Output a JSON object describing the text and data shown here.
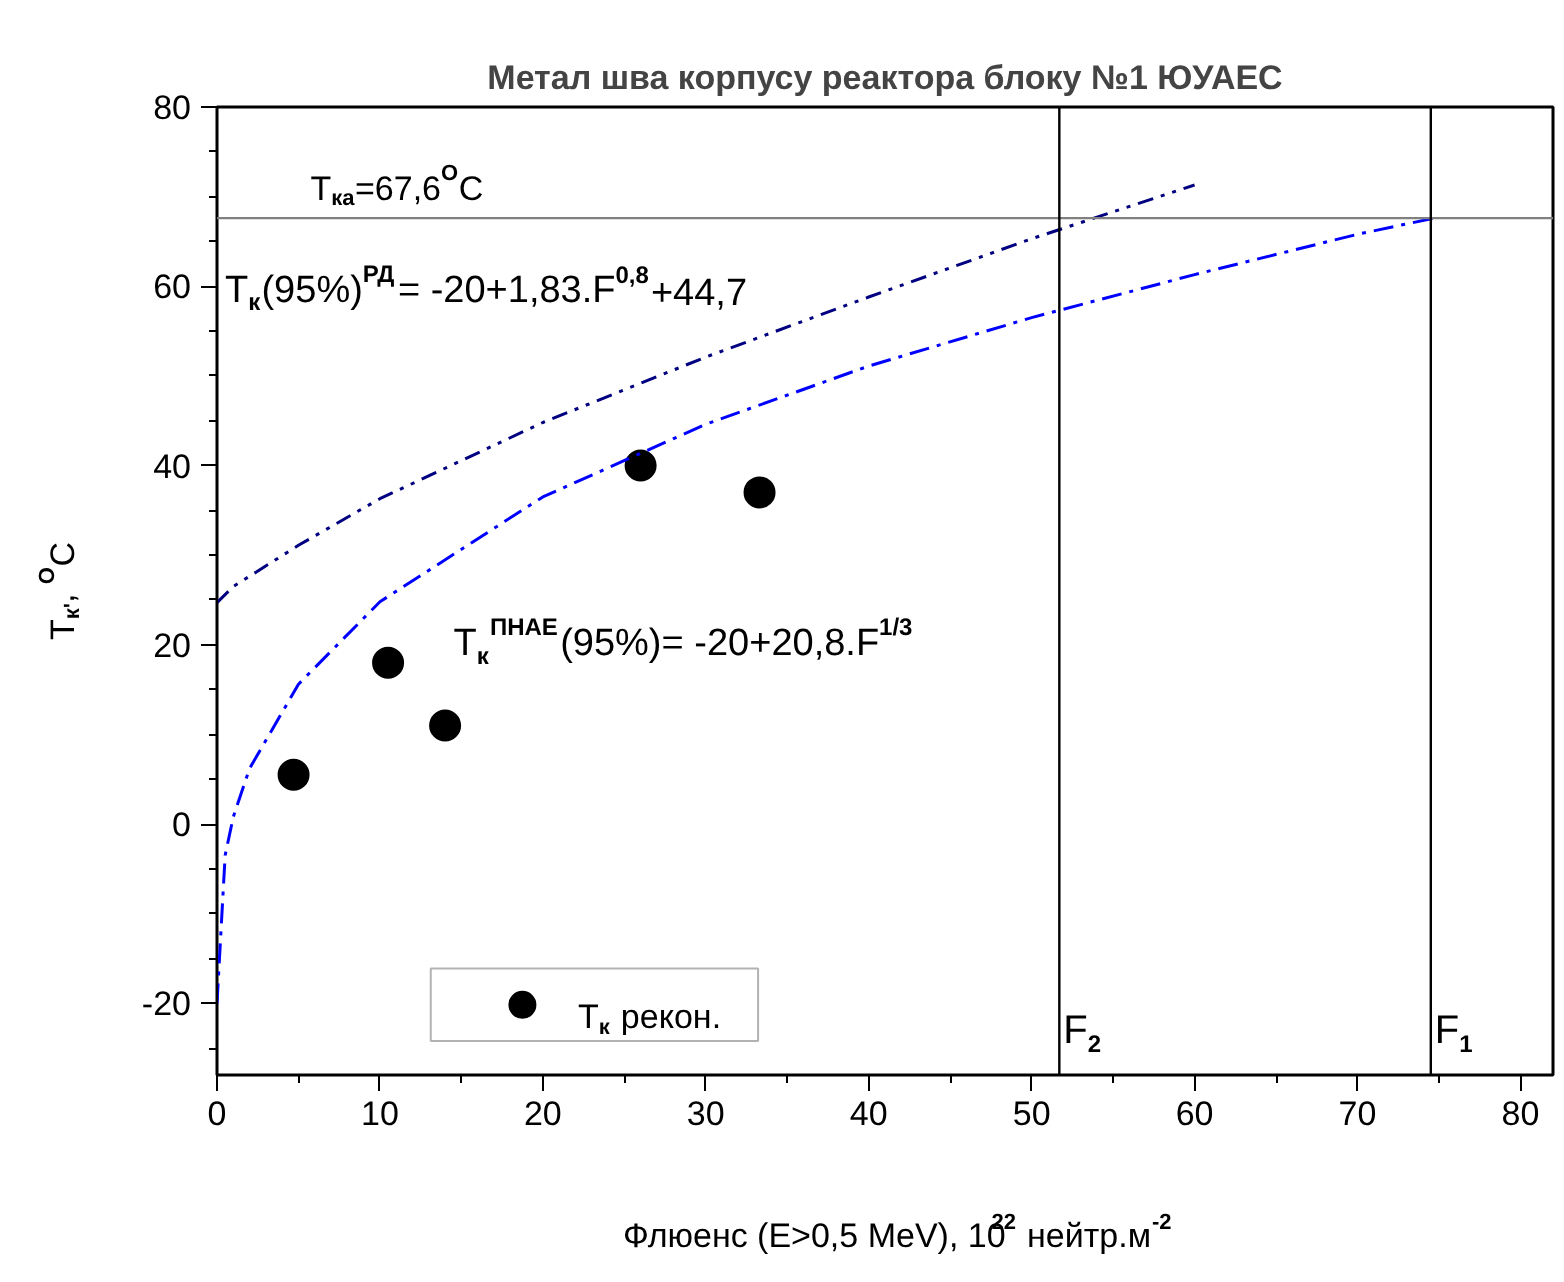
{
  "chart_data": {
    "type": "scatter",
    "title": "Метал шва корпусу реактора блоку №1 ЮУАЕС",
    "xlabel": "Флюенс (E>0,5 MeV), 10$^{22}$ нейтр.м$^{-2}$",
    "ylabel": "T$_{к'}$, $^{O}$C",
    "xlim": [
      0,
      82
    ],
    "ylim": [
      -28,
      80
    ],
    "xticks": [
      0,
      10,
      20,
      30,
      40,
      50,
      60,
      70,
      80
    ],
    "yticks": [
      -20,
      0,
      20,
      40,
      60,
      80
    ],
    "grid": false,
    "legend": "bottom left",
    "series": [
      {
        "name": "T$_{к}$ рекон.",
        "marker": "circle",
        "color": "#000000",
        "x": [
          4.7,
          10.5,
          14,
          26,
          33.3
        ],
        "values": [
          5.5,
          18,
          11,
          40,
          37
        ]
      },
      {
        "type": "line",
        "color": "#0000ff",
        "line_style": "dashdot",
        "x": [
          0,
          0.5,
          1,
          2,
          5,
          10,
          20,
          30,
          40,
          50,
          60,
          70,
          74.7
        ],
        "values": [
          -20,
          -3.5,
          0.8,
          6.2,
          15.6,
          24.8,
          36.5,
          44.6,
          51.1,
          56.5,
          61.3,
          65.8,
          67.6
        ]
      },
      {
        "type": "line",
        "color": "#000080",
        "line_style": "dashdotdot",
        "x": [
          0,
          1,
          5,
          10,
          20,
          30,
          40,
          50,
          60
        ],
        "values": [
          24.7,
          26.5,
          31.1,
          36.3,
          44.8,
          52.1,
          58.8,
          65.3,
          71.3
        ]
      }
    ],
    "ref_lines": [
      {
        "axis": "y",
        "value": 67.6,
        "label": "T$_{ка}$=67,6$^{O}$C",
        "color": "#808080"
      },
      {
        "axis": "x",
        "value": 51.7,
        "label": "F$_{2}$",
        "color": "#000000"
      },
      {
        "axis": "x",
        "value": 74.5,
        "label": "F$_{1}$",
        "color": "#000000"
      }
    ],
    "annotations": [
      "T$_{к}$(95%)$^{РД}$= -20+1,83.F$^{0,8}$+44,7",
      "T$_{к}$$^{ПНАЕ}$(95%)= -20+20,8.F$^{1/3}$"
    ]
  }
}
